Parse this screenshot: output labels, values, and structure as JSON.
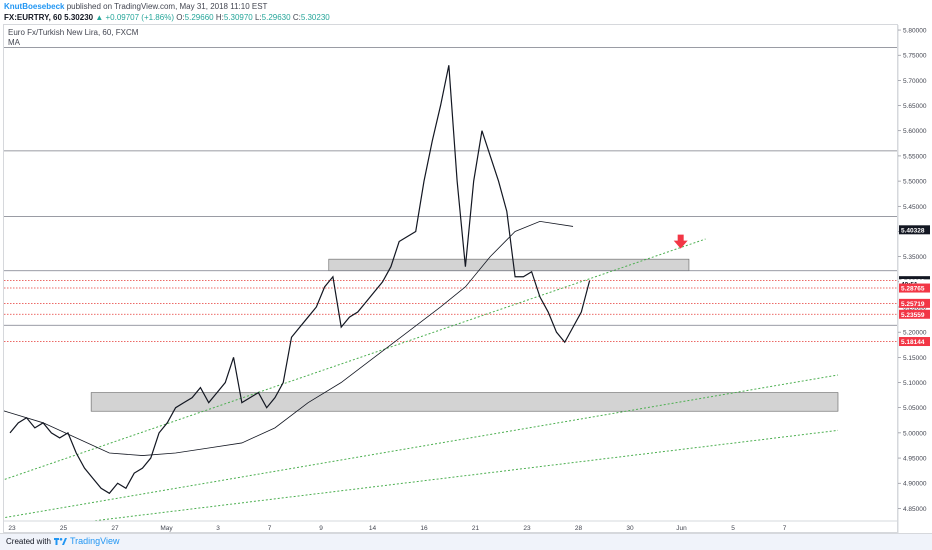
{
  "header": {
    "author": "KnutBoesebeck",
    "published": "published on TradingView.com, May 31, 2018 11:10 EST"
  },
  "ohlc": {
    "symbol": "FX:EURTRY, 60",
    "last": "5.30230",
    "arrow": "▲",
    "change": "+0.09707 (+1.86%)",
    "o_label": "O:",
    "o": "5.29660",
    "h_label": "H:",
    "h": "5.30970",
    "l_label": "L:",
    "l": "5.29630",
    "c_label": "C:",
    "c": "5.30230"
  },
  "legend": {
    "title": "Euro Fx/Turkish New Lira, 60, FXCM",
    "indicator": "MA"
  },
  "footer": {
    "created": "Created with",
    "brand": "TradingView"
  },
  "colors": {
    "candle": "#131722",
    "support_line": "#e53935",
    "trendline": "#4caf50",
    "zone": "#9e9e9e",
    "ma": "#131722",
    "arrow": "#f23645",
    "label_bg": "#131722",
    "label_red": "#f23645"
  },
  "chart_data": {
    "type": "line",
    "instrument": "FX:EURTRY",
    "timeframe": "60",
    "ylim": [
      4.825,
      5.81
    ],
    "y_ticks": [
      "5.80000",
      "5.75000",
      "5.70000",
      "5.65000",
      "5.60000",
      "5.55000",
      "5.50000",
      "5.45000",
      "5.40000",
      "5.35000",
      "5.30000",
      "5.25000",
      "5.20000",
      "5.15000",
      "5.10000",
      "5.05000",
      "5.00000",
      "4.95000",
      "4.90000",
      "4.85000"
    ],
    "x_ticks": [
      "23",
      "25",
      "27",
      "May",
      "3",
      "7",
      "9",
      "14",
      "16",
      "21",
      "23",
      "28",
      "30",
      "Jun",
      "5",
      "7"
    ],
    "price_series": {
      "name": "EURTRY",
      "x_day": [
        0,
        1,
        2,
        3,
        4,
        5,
        6,
        7,
        8,
        9,
        10,
        11,
        12,
        13,
        14,
        15,
        16,
        17,
        18,
        19,
        20,
        21,
        22,
        23,
        24,
        25,
        26,
        27,
        28,
        29,
        30,
        31,
        32,
        33,
        34,
        35,
        36,
        37,
        38,
        39,
        40,
        41,
        42,
        43,
        44,
        45,
        46,
        47,
        48,
        49,
        50,
        51,
        52,
        53,
        54,
        55,
        56,
        57,
        58,
        59,
        60,
        61,
        62,
        63,
        64,
        65,
        66,
        67,
        68,
        69,
        70
      ],
      "values": [
        5.0,
        5.02,
        5.03,
        5.01,
        5.02,
        5.0,
        4.99,
        5.0,
        4.96,
        4.93,
        4.91,
        4.89,
        4.88,
        4.9,
        4.89,
        4.92,
        4.93,
        4.95,
        5.0,
        5.02,
        5.05,
        5.06,
        5.07,
        5.09,
        5.06,
        5.08,
        5.1,
        5.15,
        5.06,
        5.07,
        5.08,
        5.05,
        5.07,
        5.1,
        5.19,
        5.21,
        5.23,
        5.25,
        5.29,
        5.31,
        5.21,
        5.23,
        5.24,
        5.26,
        5.28,
        5.3,
        5.33,
        5.38,
        5.39,
        5.4,
        5.5,
        5.58,
        5.65,
        5.73,
        5.5,
        5.33,
        5.5,
        5.6,
        5.55,
        5.5,
        5.44,
        5.31,
        5.31,
        5.32,
        5.27,
        5.24,
        5.2,
        5.18,
        5.21,
        5.24,
        5.3023
      ]
    },
    "ma_series": {
      "name": "MA",
      "x_day": [
        -4,
        0,
        4,
        8,
        12,
        16,
        20,
        24,
        28,
        32,
        36,
        40,
        44,
        48,
        52,
        55,
        58,
        61,
        64,
        68
      ],
      "values": [
        5.06,
        5.04,
        5.02,
        4.99,
        4.96,
        4.955,
        4.96,
        4.97,
        4.98,
        5.01,
        5.06,
        5.1,
        5.15,
        5.2,
        5.25,
        5.29,
        5.35,
        5.4,
        5.42,
        5.41
      ]
    },
    "horizontal_levels": [
      5.765,
      5.56,
      5.43,
      5.322,
      5.2137
    ],
    "support_levels": [
      5.3023,
      5.28765,
      5.25719,
      5.23559,
      5.18144
    ],
    "zones": [
      {
        "from_day": 38.5,
        "to_day": 82,
        "low": 5.322,
        "high": 5.345
      },
      {
        "from_day": 9.8,
        "to_day": 100,
        "low": 5.043,
        "high": 5.08
      }
    ],
    "trendlines": [
      {
        "x1_day": -2,
        "y1": 4.9,
        "x2_day": 84,
        "y2": 5.385
      },
      {
        "x1_day": -2,
        "y1": 4.828,
        "x2_day": 100,
        "y2": 5.115
      },
      {
        "x1_day": 5,
        "y1": 4.815,
        "x2_day": 100,
        "y2": 5.005
      }
    ],
    "price_labels": [
      {
        "value": 5.40328,
        "text": "5.40328",
        "style": "dark"
      },
      {
        "value": 5.3023,
        "text": "5.30230",
        "style": "dark"
      },
      {
        "value": 5.296,
        "text": "49:51",
        "style": "plain"
      },
      {
        "value": 5.28765,
        "text": "5.28765",
        "style": "red"
      },
      {
        "value": 5.25719,
        "text": "5.25719",
        "style": "red"
      },
      {
        "value": 5.23559,
        "text": "5.23559",
        "style": "red"
      },
      {
        "value": 5.18144,
        "text": "5.18144",
        "style": "red"
      }
    ],
    "annotations": [
      {
        "type": "arrow-down",
        "x_day": 81,
        "value": 5.37
      }
    ],
    "grid": false,
    "legend_position": "top-left"
  }
}
